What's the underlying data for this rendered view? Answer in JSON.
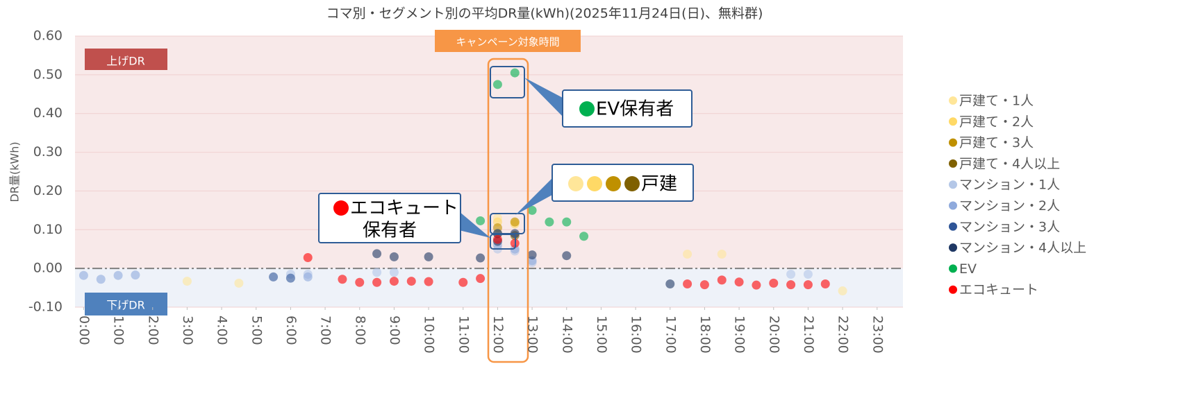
{
  "chart_data": {
    "type": "scatter",
    "title": "コマ別・セグメント別の平均DR量(kWh)(2025年11月24日(日)、無料群)",
    "y_label": "DR量(kWh)",
    "xlim": [
      -0.25,
      23.75
    ],
    "ylim": [
      -0.1,
      0.6
    ],
    "xticks": [
      {
        "value": 0,
        "label": "0:00"
      },
      {
        "value": 1,
        "label": "1:00"
      },
      {
        "value": 2,
        "label": "2:00"
      },
      {
        "value": 3,
        "label": "3:00"
      },
      {
        "value": 4,
        "label": "4:00"
      },
      {
        "value": 5,
        "label": "5:00"
      },
      {
        "value": 6,
        "label": "6:00"
      },
      {
        "value": 7,
        "label": "7:00"
      },
      {
        "value": 8,
        "label": "8:00"
      },
      {
        "value": 9,
        "label": "9:00"
      },
      {
        "value": 10,
        "label": "10:00"
      },
      {
        "value": 11,
        "label": "11:00"
      },
      {
        "value": 12,
        "label": "12:00"
      },
      {
        "value": 13,
        "label": "13:00"
      },
      {
        "value": 14,
        "label": "14:00"
      },
      {
        "value": 15,
        "label": "15:00"
      },
      {
        "value": 16,
        "label": "16:00"
      },
      {
        "value": 17,
        "label": "17:00"
      },
      {
        "value": 18,
        "label": "18:00"
      },
      {
        "value": 19,
        "label": "19:00"
      },
      {
        "value": 20,
        "label": "20:00"
      },
      {
        "value": 21,
        "label": "21:00"
      },
      {
        "value": 22,
        "label": "22:00"
      },
      {
        "value": 23,
        "label": "23:00"
      }
    ],
    "yticks": [
      {
        "value": 0.6,
        "label": "0.60"
      },
      {
        "value": 0.5,
        "label": "0.50"
      },
      {
        "value": 0.4,
        "label": "0.40"
      },
      {
        "value": 0.3,
        "label": "0.30"
      },
      {
        "value": 0.2,
        "label": "0.20"
      },
      {
        "value": 0.1,
        "label": "0.10"
      },
      {
        "value": 0,
        "label": "0.00"
      },
      {
        "value": -0.1,
        "label": "-0.10"
      }
    ],
    "grid": true,
    "legend": "right",
    "series": [
      {
        "name": "戸建て・1人",
        "color": "#ffe699",
        "x": [
          3,
          4.5,
          12,
          12.5,
          17.5,
          18.5,
          22
        ],
        "values": [
          -0.033,
          -0.038,
          0.13,
          0.12,
          0.037,
          0.037,
          -0.058
        ]
      },
      {
        "name": "戸建て・2人",
        "color": "#ffd966",
        "x": [
          12,
          12.5
        ],
        "values": [
          0.12,
          0.115
        ]
      },
      {
        "name": "戸建て・3人",
        "color": "#bf9000",
        "x": [
          12,
          12.5
        ],
        "values": [
          0.105,
          0.12
        ]
      },
      {
        "name": "戸建て・4人以上",
        "color": "#7f6000",
        "x": [
          12,
          12.5
        ],
        "values": [
          0.09,
          0.085
        ]
      },
      {
        "name": "マンション・1人",
        "color": "#b4c7e7",
        "x": [
          6,
          6.5,
          8.5,
          9,
          12,
          12.5,
          13,
          20.5,
          21
        ],
        "values": [
          -0.015,
          -0.015,
          -0.01,
          -0.01,
          0.05,
          0.045,
          0.015,
          -0.015,
          -0.015
        ]
      },
      {
        "name": "マンション・2人",
        "color": "#8faadc",
        "x": [
          0,
          0.5,
          1,
          1.5,
          6.5,
          12,
          12.5,
          13
        ],
        "values": [
          -0.018,
          -0.028,
          -0.018,
          -0.017,
          -0.022,
          0.06,
          0.05,
          0.02
        ]
      },
      {
        "name": "マンション・3人",
        "color": "#2f5597",
        "x": [
          5.5,
          6,
          12
        ],
        "values": [
          -0.022,
          -0.025,
          0.09
        ]
      },
      {
        "name": "マンション・4人以上",
        "color": "#1f3864",
        "x": [
          8.5,
          9,
          10,
          11.5,
          12,
          12.5,
          13,
          14,
          17
        ],
        "values": [
          0.038,
          0.03,
          0.03,
          0.027,
          0.07,
          0.09,
          0.035,
          0.033,
          -0.04
        ]
      },
      {
        "name": "EV",
        "color": "#00b050",
        "x": [
          11.5,
          12,
          12.5,
          13,
          13.5,
          14,
          14.5
        ],
        "values": [
          0.123,
          0.475,
          0.505,
          0.15,
          0.12,
          0.12,
          0.083
        ]
      },
      {
        "name": "エコキュート",
        "color": "#ff0000",
        "x": [
          6.5,
          7.5,
          8,
          8.5,
          9,
          9.5,
          10,
          11,
          11.5,
          12,
          12.5,
          17.5,
          18,
          18.5,
          19,
          19.5,
          20,
          20.5,
          21,
          21.5
        ],
        "values": [
          0.028,
          -0.028,
          -0.036,
          -0.036,
          -0.033,
          -0.033,
          -0.034,
          -0.036,
          -0.026,
          0.075,
          0.065,
          -0.04,
          -0.042,
          -0.03,
          -0.035,
          -0.043,
          -0.038,
          -0.042,
          -0.042,
          -0.04
        ]
      }
    ],
    "annotations": {
      "up_dr": "上げDR",
      "down_dr": "下げDR",
      "campaign": "キャンペーン対象時間",
      "ev": "EV保有者",
      "detached": "戸建",
      "ecocute": [
        "エコキュート",
        "保有者"
      ]
    }
  }
}
